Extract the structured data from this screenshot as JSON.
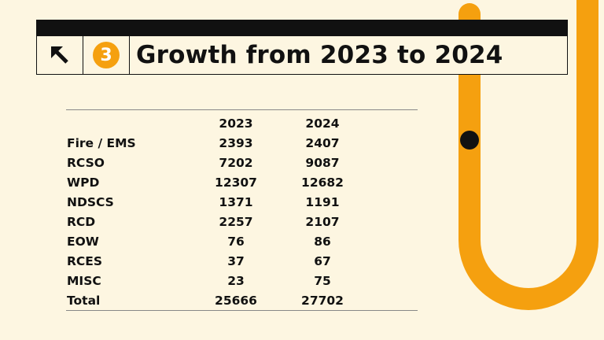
{
  "header": {
    "arrow_icon": "arrow-up-left-icon",
    "section_number": "3",
    "title": "Growth from 2023 to 2024"
  },
  "table": {
    "columns": [
      "",
      "2023",
      "2024"
    ],
    "rows": [
      {
        "label": "Fire / EMS",
        "y2023": "2393",
        "y2024": "2407"
      },
      {
        "label": "RCSO",
        "y2023": "7202",
        "y2024": "9087"
      },
      {
        "label": "WPD",
        "y2023": "12307",
        "y2024": "12682"
      },
      {
        "label": "NDSCS",
        "y2023": "1371",
        "y2024": "1191"
      },
      {
        "label": "RCD",
        "y2023": "2257",
        "y2024": "2107"
      },
      {
        "label": "EOW",
        "y2023": "76",
        "y2024": "86"
      },
      {
        "label": "RCES",
        "y2023": "37",
        "y2024": "67"
      },
      {
        "label": "MISC",
        "y2023": "23",
        "y2024": "75"
      },
      {
        "label": "Total",
        "y2023": "25666",
        "y2024": "27702"
      }
    ]
  },
  "colors": {
    "background": "#fdf6e1",
    "accent": "#f5a00f",
    "ink": "#111111"
  }
}
